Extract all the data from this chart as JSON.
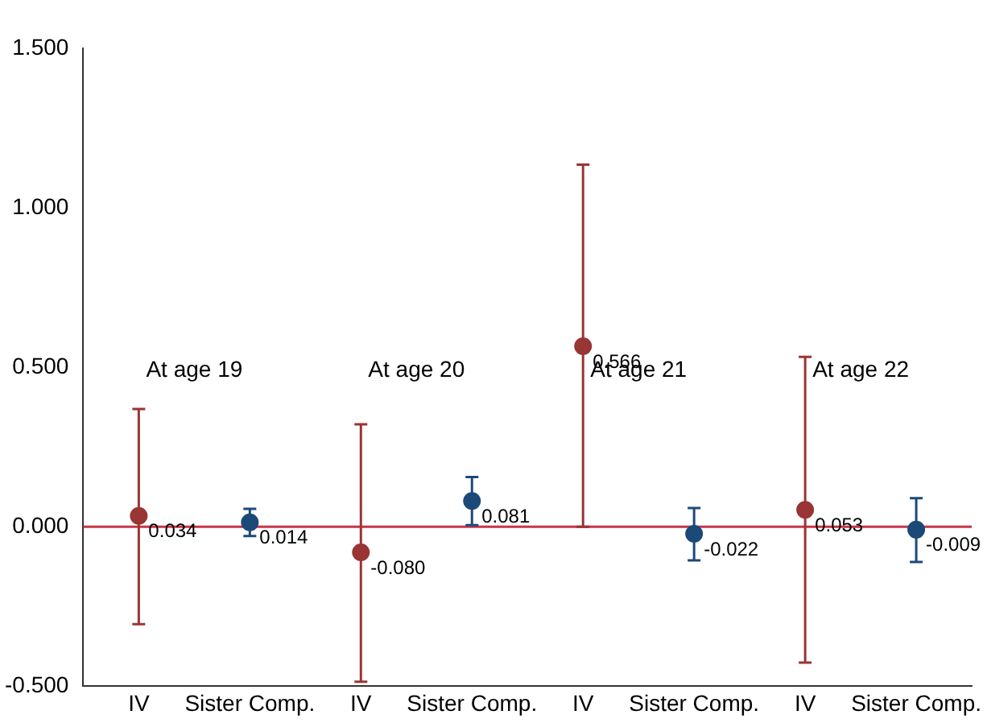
{
  "chart_data": {
    "type": "scatter",
    "categories": [
      "IV",
      "Sister Comp.",
      "IV",
      "Sister Comp.",
      "IV",
      "Sister Comp.",
      "IV",
      "Sister Comp."
    ],
    "series": [
      {
        "color": "#993535",
        "values": [
          0.034,
          null,
          -0.08,
          null,
          0.566,
          null,
          0.053,
          null
        ],
        "errors": [
          [
            -0.305,
            0.369
          ],
          null,
          [
            -0.486,
            0.321
          ],
          null,
          [
            0,
            1.135
          ],
          null,
          [
            -0.426,
            0.533
          ],
          null
        ],
        "value_labels": [
          "0.034",
          null,
          "-0.080",
          null,
          "0.566",
          null,
          "0.053",
          null
        ]
      },
      {
        "color": "#1c4a78",
        "values": [
          null,
          0.014,
          null,
          0.081,
          null,
          -0.022,
          null,
          -0.009
        ],
        "errors": [
          null,
          [
            -0.029,
            0.056
          ],
          null,
          [
            0.005,
            0.156
          ],
          null,
          [
            -0.105,
            0.059
          ],
          null,
          [
            -0.11,
            0.09
          ]
        ],
        "value_labels": [
          null,
          "0.014",
          null,
          "0.081",
          null,
          "-0.022",
          null,
          "-0.009"
        ]
      }
    ],
    "ylim": [
      -0.5,
      1.5
    ],
    "yticks": [
      {
        "value": -0.5,
        "label": "-0.500"
      },
      {
        "value": 0,
        "label": "0.000"
      },
      {
        "value": 0.5,
        "label": "0.500"
      },
      {
        "value": 1,
        "label": "1.000"
      },
      {
        "value": 1.5,
        "label": "1.500"
      }
    ],
    "grid": false,
    "legend": false,
    "marker": "circle",
    "ref_lines": [
      {
        "axis": "y",
        "value": 0,
        "color": "#c8344a"
      }
    ],
    "annotations": [
      "At age 19",
      "At age 20",
      "At age 21",
      "At age 22"
    ]
  }
}
